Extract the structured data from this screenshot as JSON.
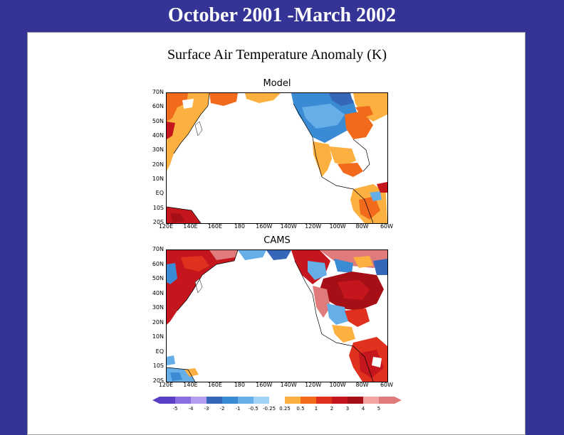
{
  "slide_title": "October 2001 -March 2002",
  "panel_title": "Surface Air Temperature Anomaly (K)",
  "maps": [
    {
      "title": "Model",
      "lat_labels": [
        "70N",
        "60N",
        "50N",
        "40N",
        "30N",
        "20N",
        "10N",
        "EQ",
        "10S",
        "20S"
      ],
      "lon_labels": [
        "120E",
        "140E",
        "160E",
        "180",
        "160W",
        "140W",
        "120W",
        "100W",
        "80W",
        "60W"
      ]
    },
    {
      "title": "CAMS",
      "lat_labels": [
        "70N",
        "60N",
        "50N",
        "40N",
        "30N",
        "20N",
        "10N",
        "EQ",
        "10S",
        "20S"
      ],
      "lon_labels": [
        "120E",
        "140E",
        "160E",
        "180",
        "160W",
        "140W",
        "120W",
        "100W",
        "80W",
        "60W"
      ]
    }
  ],
  "colorbar": {
    "labels": [
      "-5",
      "-4",
      "-3",
      "-2",
      "-1",
      "-0.5",
      "-0.25",
      "0.25",
      "0.5",
      "1",
      "2",
      "3",
      "4",
      "5"
    ],
    "colors": [
      "#5a3fc6",
      "#8a6de0",
      "#b59ef2",
      "#3566b8",
      "#3a8ad4",
      "#66aee8",
      "#a0d2f4",
      "#ffffff",
      "#fbb040",
      "#f26a1b",
      "#e0301e",
      "#c4161c",
      "#a50f15",
      "#f4a3a3",
      "#e07b7b"
    ]
  },
  "colors": {
    "background": "#343497",
    "warm": "#e0301e",
    "cold": "#3a8ad4"
  }
}
